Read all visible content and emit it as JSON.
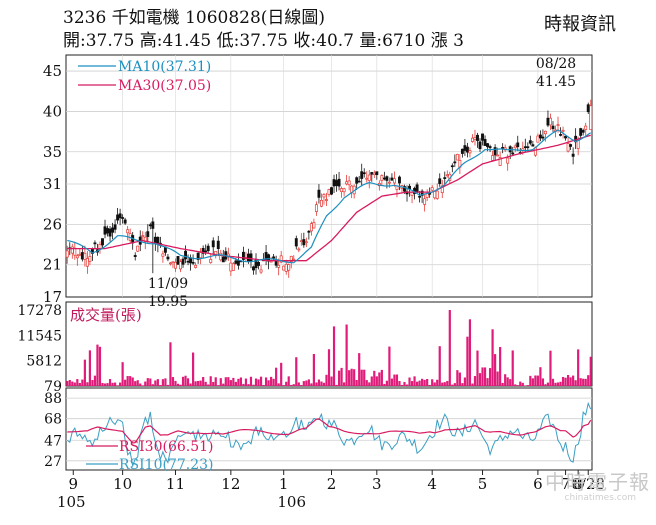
{
  "header": {
    "title": "3236  千如電機 1060828(日線圖)",
    "ohlc": "開:37.75 高:41.45 低:37.75 收:40.7 量:6710 漲 3",
    "publisher": "時報資訊"
  },
  "watermark": "中時電子報",
  "watermark_sub": "chinatimes.com",
  "chart_data": [
    {
      "type": "candlestick",
      "panel": "price",
      "yticks": [
        45,
        40,
        35,
        31,
        26,
        21,
        17
      ],
      "ylim": [
        17,
        46
      ],
      "legend": [
        {
          "name": "MA10(37.31)",
          "color": "#1a8fc0"
        },
        {
          "name": "MA30(37.05)",
          "color": "#d81b60"
        }
      ],
      "annotations": [
        {
          "text": "08/28",
          "at": "last high"
        },
        {
          "text": "41.45",
          "at": "last high"
        },
        {
          "text": "11/09",
          "at": "low"
        },
        {
          "text": "19.95",
          "at": "low"
        }
      ],
      "close_anchors": [
        [
          0,
          23.5
        ],
        [
          8,
          22.0
        ],
        [
          15,
          24.0
        ],
        [
          22,
          26.5
        ],
        [
          27,
          22.5
        ],
        [
          33,
          25.5
        ],
        [
          40,
          21.5
        ],
        [
          48,
          21.0
        ],
        [
          58,
          22.5
        ],
        [
          65,
          21.5
        ],
        [
          73,
          21.0
        ],
        [
          80,
          21.0
        ],
        [
          88,
          21.5
        ],
        [
          95,
          24.0
        ],
        [
          100,
          29.0
        ],
        [
          106,
          30.5
        ],
        [
          112,
          31.0
        ],
        [
          120,
          32.0
        ],
        [
          128,
          31.5
        ],
        [
          135,
          30.0
        ],
        [
          140,
          29.0
        ],
        [
          146,
          30.0
        ],
        [
          152,
          33.0
        ],
        [
          158,
          35.0
        ],
        [
          162,
          36.5
        ],
        [
          168,
          35.0
        ],
        [
          174,
          35.0
        ],
        [
          180,
          35.0
        ],
        [
          186,
          36.0
        ],
        [
          192,
          38.5
        ],
        [
          198,
          37.5
        ],
        [
          201,
          35.0
        ],
        [
          204,
          36.5
        ],
        [
          208,
          40.7
        ]
      ],
      "ma10_anchors": [
        [
          0,
          24.0
        ],
        [
          10,
          22.5
        ],
        [
          20,
          24.5
        ],
        [
          27,
          24.0
        ],
        [
          35,
          23.8
        ],
        [
          45,
          22.0
        ],
        [
          60,
          22.0
        ],
        [
          75,
          21.5
        ],
        [
          90,
          21.5
        ],
        [
          97,
          23.0
        ],
        [
          103,
          27.0
        ],
        [
          110,
          29.5
        ],
        [
          120,
          31.0
        ],
        [
          130,
          31.0
        ],
        [
          140,
          29.5
        ],
        [
          150,
          31.0
        ],
        [
          158,
          33.5
        ],
        [
          166,
          35.5
        ],
        [
          175,
          35.0
        ],
        [
          185,
          35.5
        ],
        [
          195,
          37.5
        ],
        [
          202,
          36.5
        ],
        [
          208,
          37.31
        ]
      ],
      "ma30_anchors": [
        [
          0,
          23.0
        ],
        [
          15,
          23.0
        ],
        [
          30,
          24.0
        ],
        [
          45,
          23.0
        ],
        [
          60,
          22.2
        ],
        [
          80,
          21.5
        ],
        [
          95,
          21.5
        ],
        [
          105,
          24.0
        ],
        [
          115,
          27.5
        ],
        [
          125,
          29.5
        ],
        [
          135,
          30.0
        ],
        [
          145,
          30.0
        ],
        [
          155,
          31.5
        ],
        [
          165,
          33.5
        ],
        [
          180,
          34.8
        ],
        [
          195,
          35.8
        ],
        [
          208,
          37.05
        ]
      ]
    },
    {
      "type": "bar",
      "panel": "volume",
      "label": "成交量(張)",
      "yticks": [
        17278,
        11545,
        5812,
        79
      ],
      "ylim": [
        79,
        17278
      ],
      "color": "#e01c7a"
    },
    {
      "type": "line",
      "panel": "rsi",
      "yticks": [
        88,
        68,
        47,
        27
      ],
      "ylim": [
        20,
        92
      ],
      "series": [
        {
          "name": "RSI30(66.51)",
          "color": "#d81b60"
        },
        {
          "name": "RSI10(77.23)",
          "color": "#3a9fc4"
        }
      ],
      "xticks": [
        "9",
        "10",
        "11",
        "12",
        "1",
        "2",
        "3",
        "4",
        "5",
        "6",
        "7",
        "8",
        "8/28"
      ],
      "xticks_sub": [
        "105",
        "106"
      ]
    }
  ]
}
